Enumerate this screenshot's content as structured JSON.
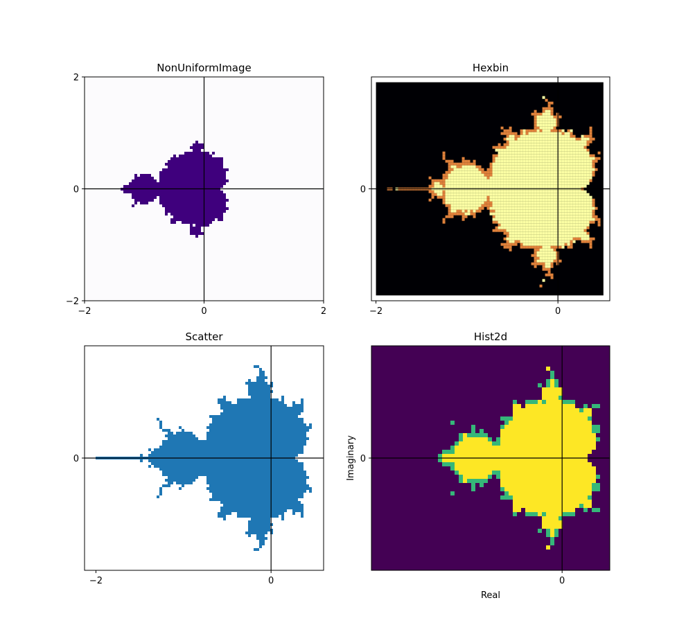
{
  "chart_data": [
    {
      "type": "heatmap",
      "panel": "NonUniformImage",
      "title": "NonUniformImage",
      "xlabel": "",
      "ylabel": "",
      "xlim": [
        -2,
        2
      ],
      "ylim": [
        -2,
        2
      ],
      "xticks": [
        -2,
        0,
        2
      ],
      "yticks": [
        -2,
        0,
        2
      ],
      "xtick_labels": [
        "−2",
        "0",
        "2"
      ],
      "ytick_labels": [
        "−2",
        "0",
        "2"
      ],
      "colormap": "Purples",
      "inside_color": "#3f007d",
      "outside_color": "#fcfbfd",
      "crosshair": true
    },
    {
      "type": "heatmap",
      "panel": "Hexbin",
      "title": "Hexbin",
      "xlabel": "",
      "ylabel": "",
      "xlim": [
        -2.05,
        0.57
      ],
      "ylim": [
        -1.26,
        1.26
      ],
      "data_extent_x": [
        -2.0,
        0.5
      ],
      "data_extent_y": [
        -1.2,
        1.2
      ],
      "xticks": [
        -2,
        0
      ],
      "yticks": [
        0
      ],
      "xtick_labels": [
        "−2",
        "0"
      ],
      "ytick_labels": [
        "0"
      ],
      "colormap": "inferno",
      "inside_color": "#fcffa4",
      "outside_color": "#000004",
      "edge_color": "#e0823b",
      "crosshair": true
    },
    {
      "type": "scatter",
      "panel": "Scatter",
      "title": "Scatter",
      "xlabel": "",
      "ylabel": "",
      "xlim": [
        -2.13,
        0.6
      ],
      "ylim": [
        -1.26,
        1.26
      ],
      "xticks": [
        -2,
        0
      ],
      "yticks": [
        0
      ],
      "xtick_labels": [
        "−2",
        "0"
      ],
      "ytick_labels": [
        "0"
      ],
      "marker_color": "#1f77b4",
      "crosshair": true
    },
    {
      "type": "heatmap",
      "panel": "Hist2d",
      "title": "Hist2d",
      "xlabel": "Real",
      "ylabel": "Imaginary",
      "xlim": [
        -2.2,
        0.55
      ],
      "ylim": [
        -1.3,
        1.3
      ],
      "xticks": [
        0
      ],
      "yticks": [
        0
      ],
      "xtick_labels": [
        "0"
      ],
      "ytick_labels": [
        "0"
      ],
      "colormap": "viridis",
      "inside_color": "#fde725",
      "outside_color": "#440154",
      "edge_color": "#35b779",
      "crosshair": true
    }
  ]
}
